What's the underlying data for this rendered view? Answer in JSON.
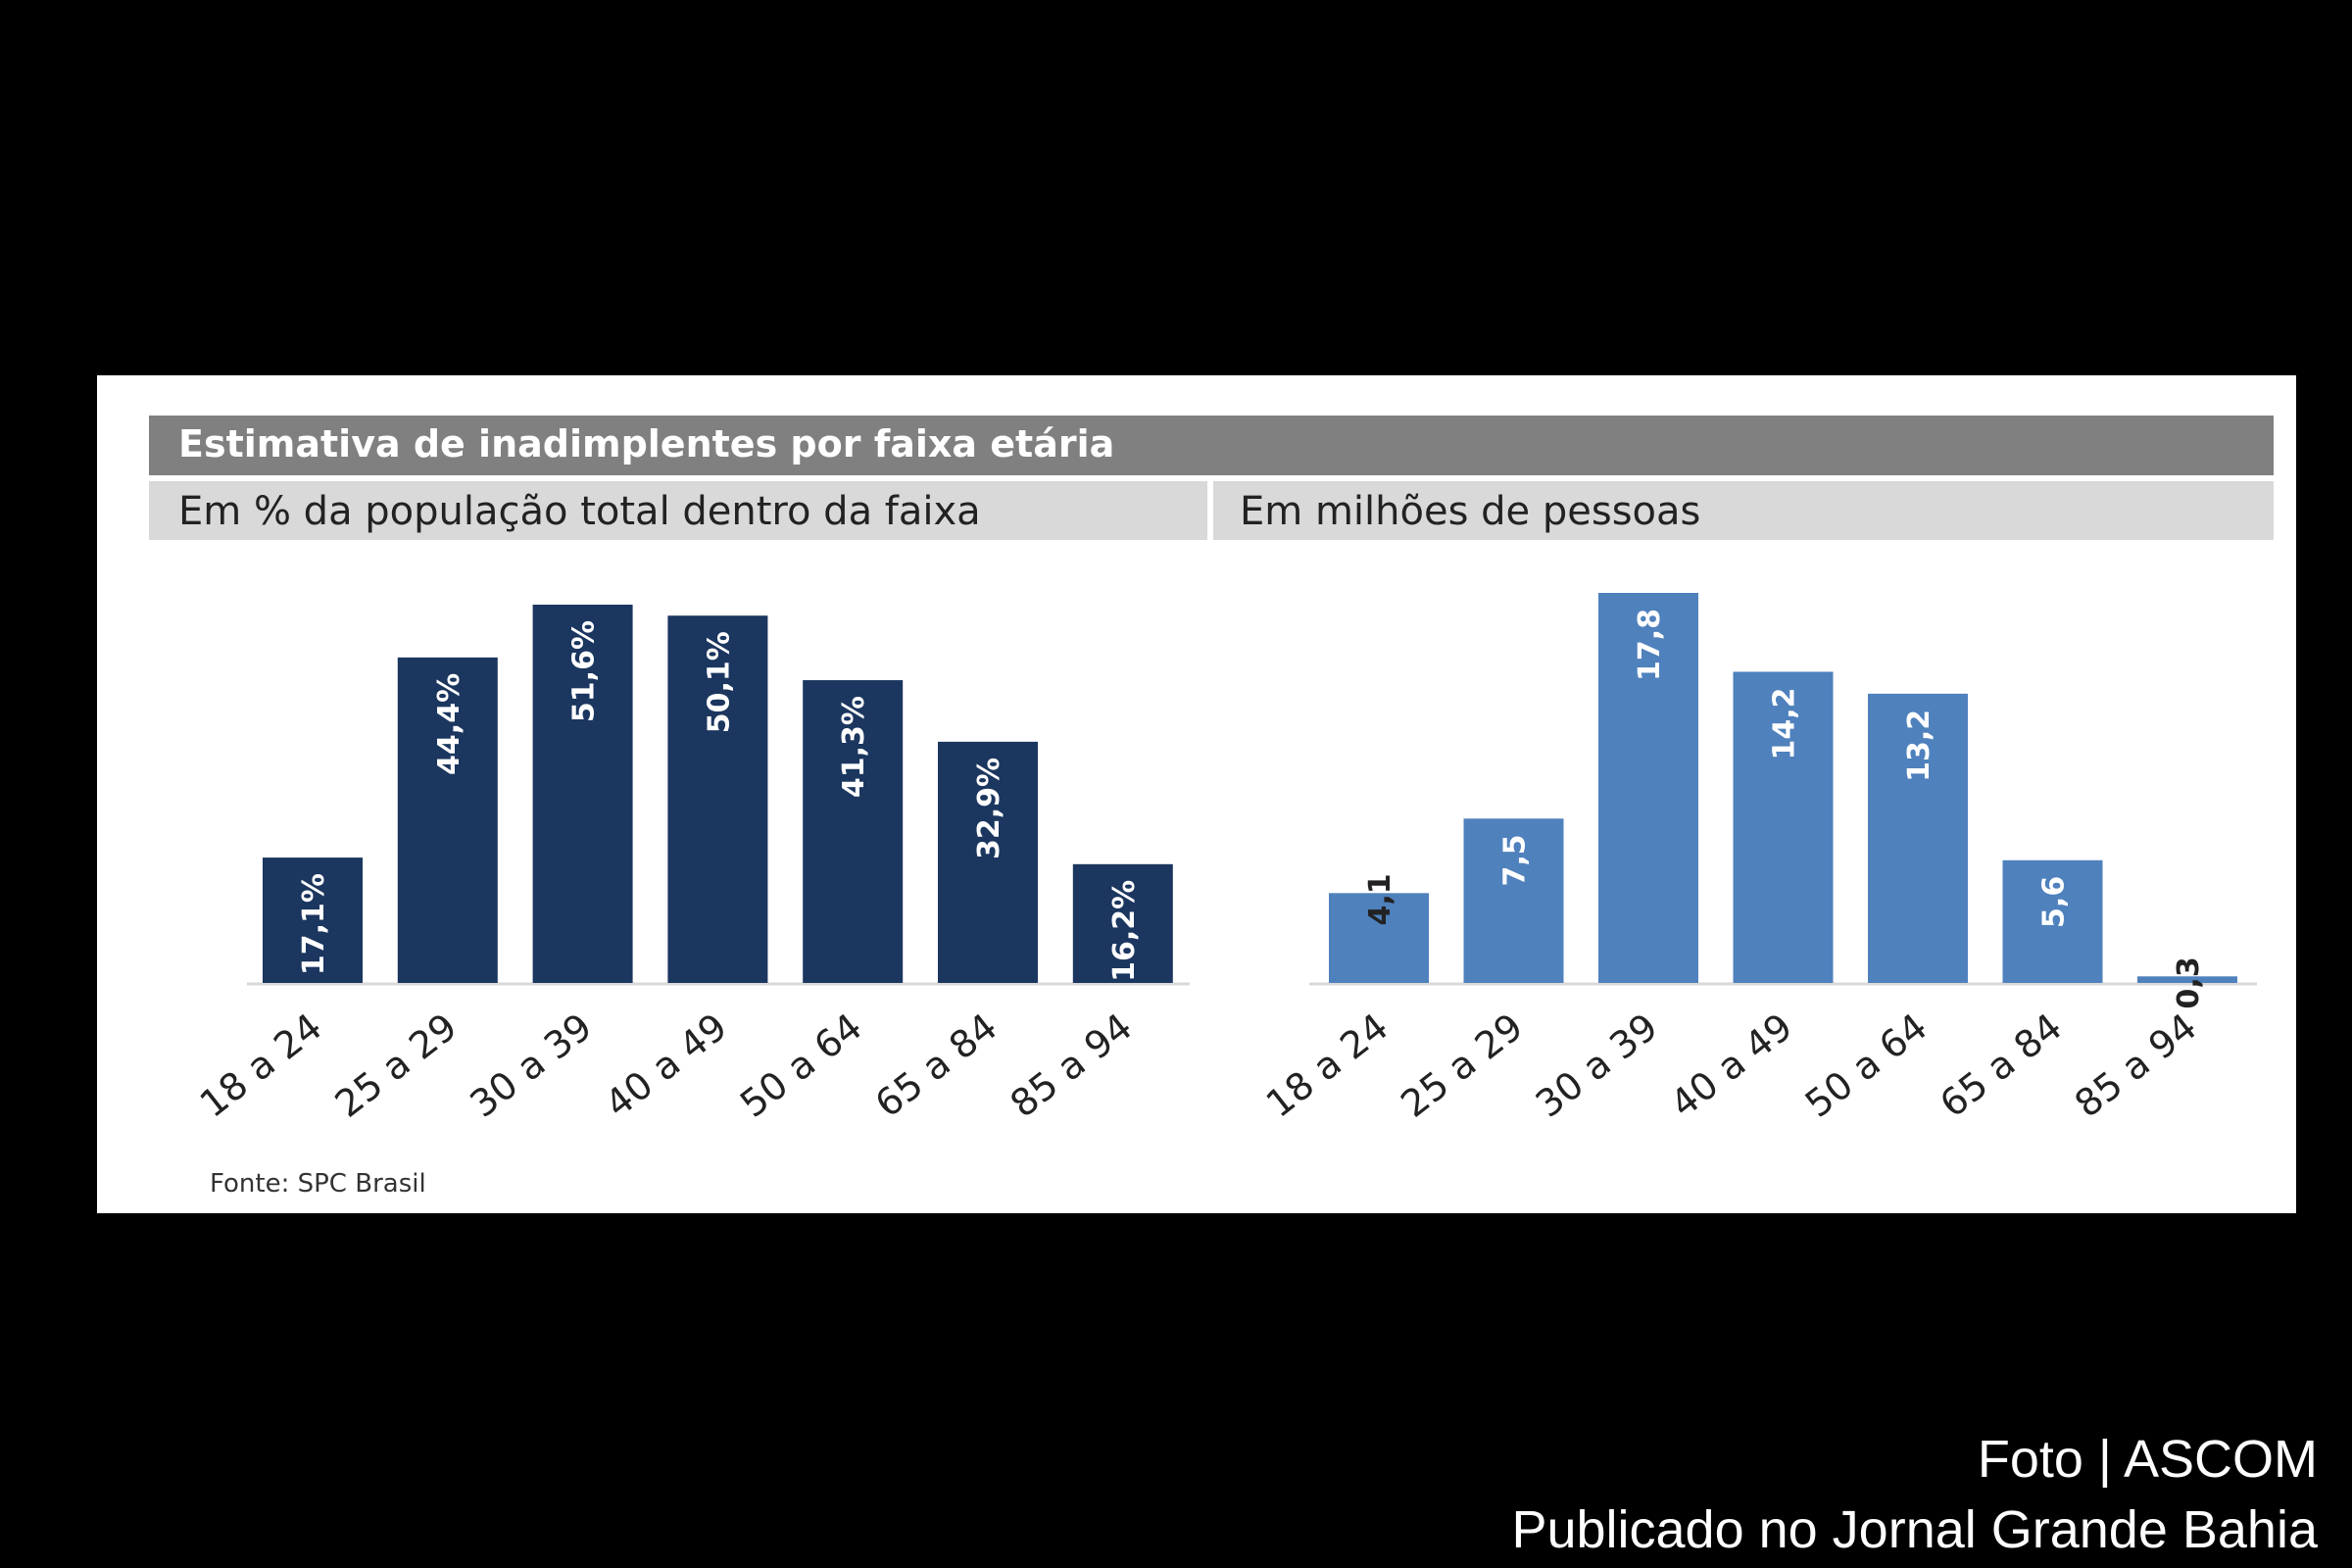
{
  "title": "Estimativa de inadimplentes por faixa etária",
  "source": "Fonte: SPC Brasil",
  "footer": {
    "credit": "Foto | ASCOM",
    "published": "Publicado no Jornal Grande Bahia"
  },
  "colors": {
    "left_bars": "#1b365f",
    "right_bars": "#4f81bd",
    "header": "#808080",
    "subheader": "#d9d9d9"
  },
  "chart_data": [
    {
      "type": "bar",
      "title": "Em % da população total dentro da faixa",
      "categories": [
        "18 a 24",
        "25 a 29",
        "30 a 39",
        "40 a 49",
        "50 a 64",
        "65 a 84",
        "85 a 94"
      ],
      "values": [
        17.1,
        44.4,
        51.6,
        50.1,
        41.3,
        32.9,
        16.2
      ],
      "labels": [
        "17,1%",
        "44,4%",
        "51,6%",
        "50,1%",
        "41,3%",
        "32,9%",
        "16,2%"
      ],
      "ylim": [
        0,
        51.6
      ],
      "grid": false
    },
    {
      "type": "bar",
      "title": "Em milhões de pessoas",
      "categories": [
        "18 a 24",
        "25 a 29",
        "30 a 39",
        "40 a 49",
        "50 a 64",
        "65 a 84",
        "85 a 94"
      ],
      "values": [
        4.1,
        7.5,
        17.8,
        14.2,
        13.2,
        5.6,
        0.3
      ],
      "labels": [
        "4,1",
        "7,5",
        "17,8",
        "14,2",
        "13,2",
        "5,6",
        "0,3"
      ],
      "ylim": [
        0,
        17.8
      ],
      "grid": false
    }
  ]
}
